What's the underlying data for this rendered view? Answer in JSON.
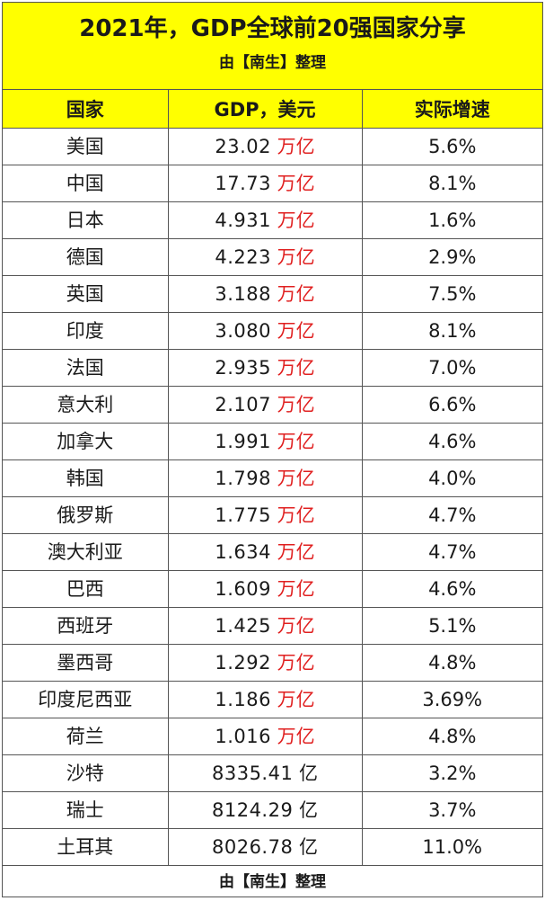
{
  "title": "2021年，GDP全球前20强国家分享",
  "subtitle": "由【南生】整理",
  "headers": [
    "国家",
    "GDP，美元",
    "实际增速"
  ],
  "rows": [
    {
      "country": "美国",
      "gdp": "23.02",
      "unit": "万亿",
      "growth": "5.6%"
    },
    {
      "country": "中国",
      "gdp": "17.73",
      "unit": "万亿",
      "growth": "8.1%"
    },
    {
      "country": "日本",
      "gdp": "4.931",
      "unit": "万亿",
      "growth": "1.6%"
    },
    {
      "country": "德国",
      "gdp": "4.223",
      "unit": "万亿",
      "growth": "2.9%"
    },
    {
      "country": "英国",
      "gdp": "3.188",
      "unit": "万亿",
      "growth": "7.5%"
    },
    {
      "country": "印度",
      "gdp": "3.080",
      "unit": "万亿",
      "growth": "8.1%"
    },
    {
      "country": "法国",
      "gdp": "2.935",
      "unit": "万亿",
      "growth": "7.0%"
    },
    {
      "country": "意大利",
      "gdp": "2.107",
      "unit": "万亿",
      "growth": "6.6%"
    },
    {
      "country": "加拿大",
      "gdp": "1.991",
      "unit": "万亿",
      "growth": "4.6%"
    },
    {
      "country": "韩国",
      "gdp": "1.798",
      "unit": "万亿",
      "growth": "4.0%"
    },
    {
      "country": "俄罗斯",
      "gdp": "1.775",
      "unit": "万亿",
      "growth": "4.7%"
    },
    {
      "country": "澳大利亚",
      "gdp": "1.634",
      "unit": "万亿",
      "growth": "4.7%"
    },
    {
      "country": "巴西",
      "gdp": "1.609",
      "unit": "万亿",
      "growth": "4.6%"
    },
    {
      "country": "西班牙",
      "gdp": "1.425",
      "unit": "万亿",
      "growth": "5.1%"
    },
    {
      "country": "墨西哥",
      "gdp": "1.292",
      "unit": "万亿",
      "growth": "4.8%"
    },
    {
      "country": "印度尼西亚",
      "gdp": "1.186",
      "unit": "万亿",
      "growth": "3.69%"
    },
    {
      "country": "荷兰",
      "gdp": "1.016",
      "unit": "万亿",
      "growth": "4.8%"
    },
    {
      "country": "沙特",
      "gdp": "8335.41",
      "unit": "亿",
      "growth": "3.2%"
    },
    {
      "country": "瑞士",
      "gdp": "8124.29",
      "unit": "亿",
      "growth": "3.7%"
    },
    {
      "country": "土耳其",
      "gdp": "8026.78",
      "unit": "亿",
      "growth": "11.0%"
    }
  ],
  "footer": "由【南生】整理",
  "colors": {
    "highlight": "#ffff00",
    "unit_trillion": "#e02020",
    "text": "#1a1a1a",
    "border": "#555555"
  }
}
